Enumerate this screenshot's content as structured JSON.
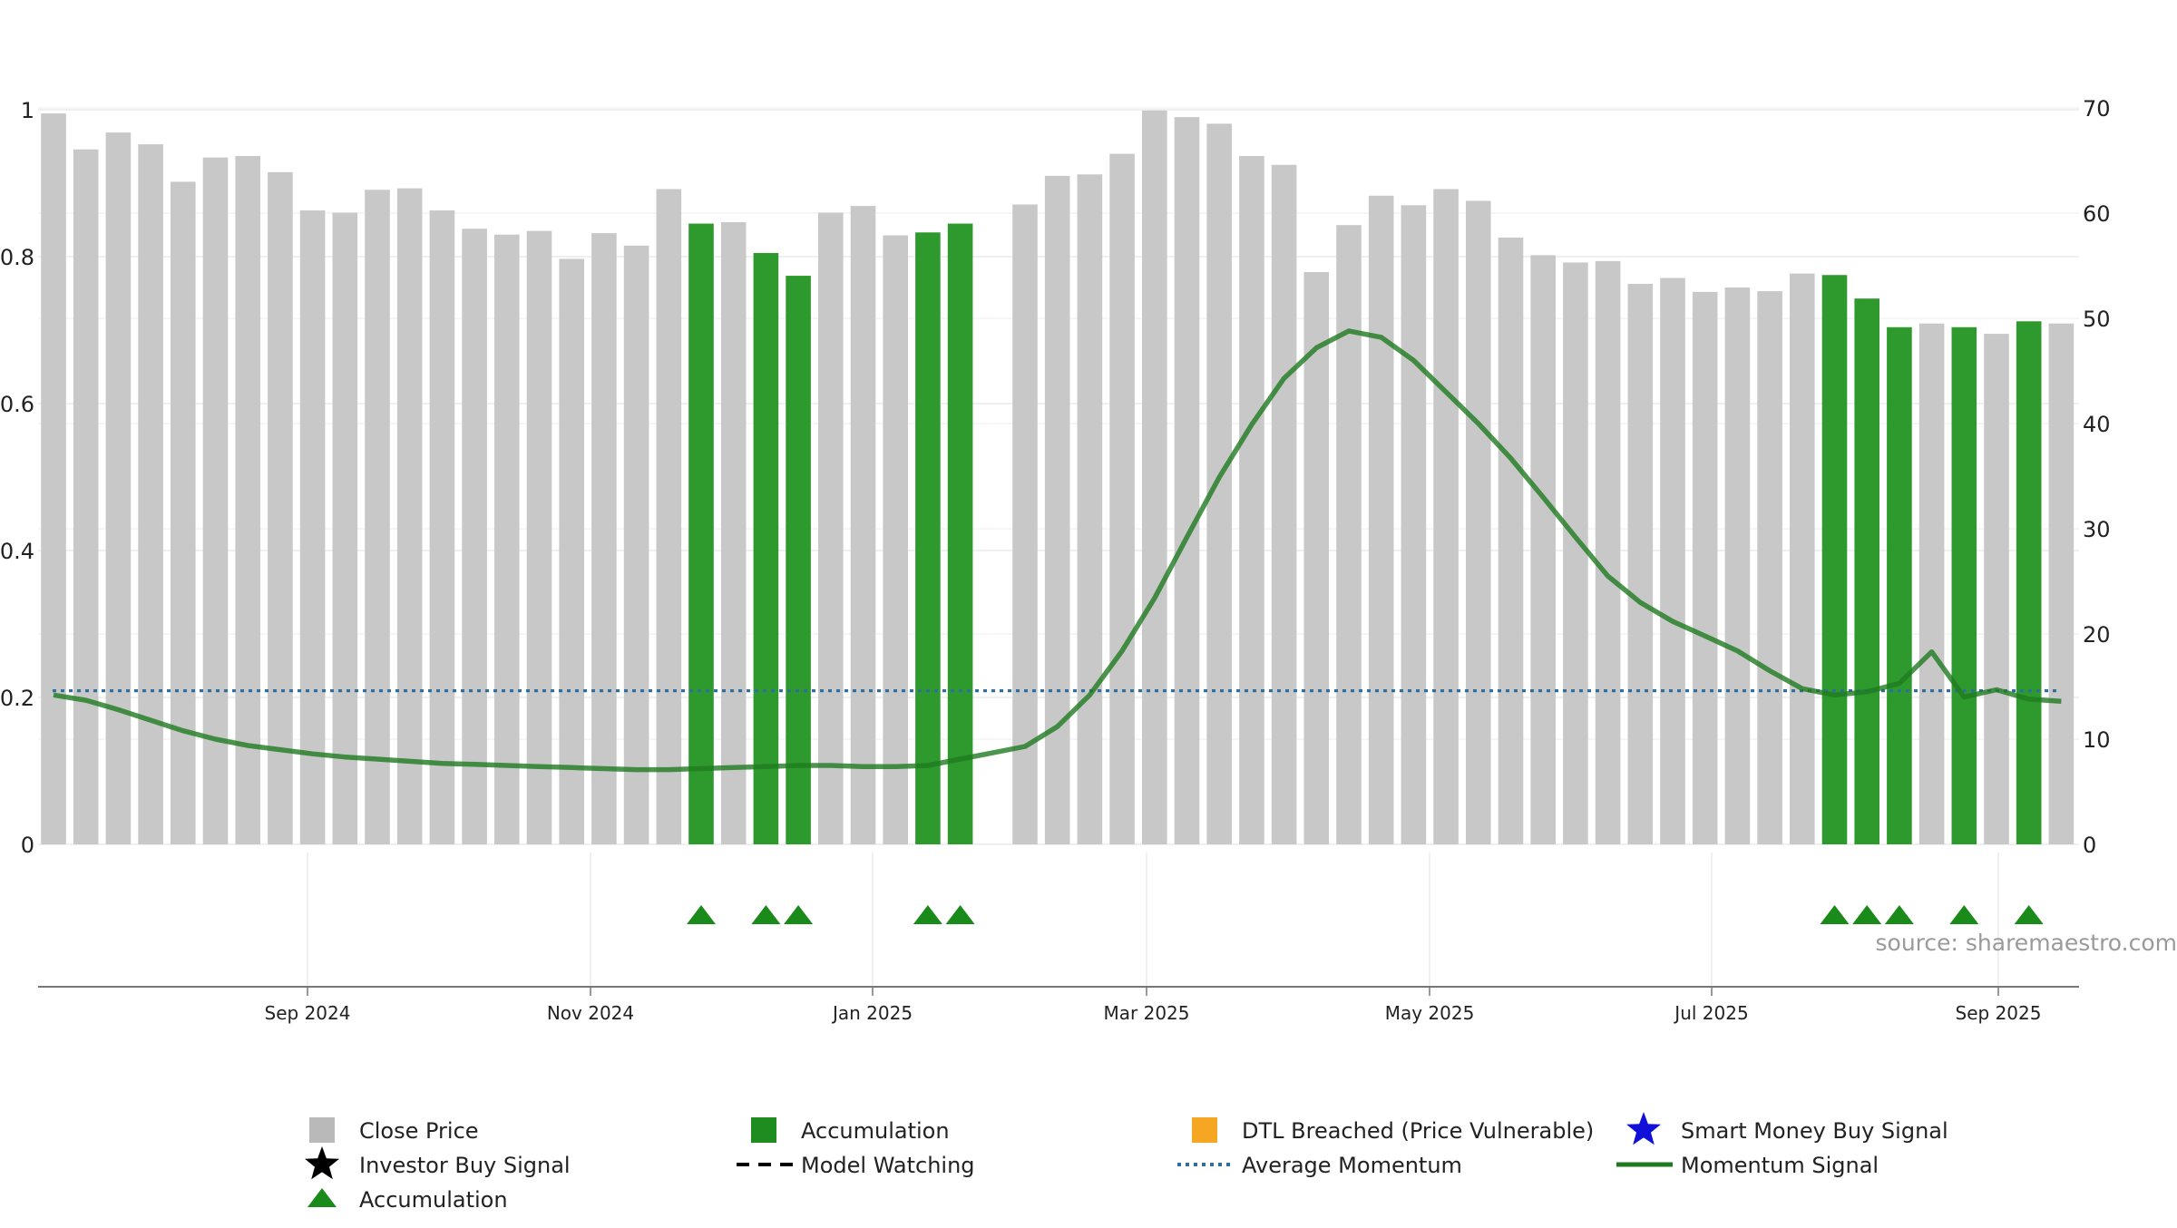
{
  "source": "source: sharemaestro.com",
  "chart_data": {
    "type": "bar",
    "x_tick_labels": [
      "Sep 2024",
      "Nov 2024",
      "Jan 2025",
      "Mar 2025",
      "May 2025",
      "Jul 2025",
      "Sep 2025"
    ],
    "left_axis": {
      "ylim": [
        0,
        1
      ],
      "tick_labels": [
        "0",
        "0.2",
        "0.4",
        "0.6",
        "0.8",
        "1"
      ]
    },
    "right_axis": {
      "ylim": [
        0,
        70
      ],
      "tick_labels": [
        "0",
        "10",
        "20",
        "30",
        "40",
        "50",
        "60",
        "70"
      ]
    },
    "grid": true,
    "legend_position": "bottom",
    "series": [
      {
        "name": "Close Price",
        "color": "#c8c8c8",
        "accumulation_color": "#2e9a2e",
        "values": [
          0.995,
          0.946,
          0.969,
          0.953,
          0.902,
          0.935,
          0.937,
          0.915,
          0.863,
          0.86,
          0.891,
          0.893,
          0.863,
          0.838,
          0.83,
          0.835,
          0.797,
          0.832,
          0.815,
          0.892,
          0.845,
          0.847,
          0.805,
          0.774,
          0.86,
          0.869,
          0.829,
          0.833,
          0.845,
          null,
          0.871,
          0.91,
          0.912,
          0.94,
          0.999,
          0.99,
          0.981,
          0.937,
          0.925,
          0.779,
          0.843,
          0.883,
          0.87,
          0.892,
          0.876,
          0.826,
          0.802,
          0.792,
          0.794,
          0.763,
          0.771,
          0.752,
          0.758,
          0.753,
          0.777,
          0.775,
          0.743,
          0.704,
          0.709,
          0.704,
          0.695,
          0.712,
          0.709
        ],
        "accumulation_flags": [
          0,
          0,
          0,
          0,
          0,
          0,
          0,
          0,
          0,
          0,
          0,
          0,
          0,
          0,
          0,
          0,
          0,
          0,
          0,
          0,
          1,
          0,
          1,
          1,
          0,
          0,
          0,
          1,
          1,
          0,
          0,
          0,
          0,
          0,
          0,
          0,
          0,
          0,
          0,
          0,
          0,
          0,
          0,
          0,
          0,
          0,
          0,
          0,
          0,
          0,
          0,
          0,
          0,
          0,
          0,
          1,
          1,
          1,
          0,
          1,
          0,
          1,
          0
        ]
      },
      {
        "name": "Momentum Signal",
        "color": "#1f7a1f",
        "axis": "right",
        "values": [
          14.2,
          13.7,
          12.8,
          11.8,
          10.8,
          10.0,
          9.4,
          9.0,
          8.6,
          8.3,
          8.1,
          7.9,
          7.7,
          7.6,
          7.5,
          7.4,
          7.3,
          7.2,
          7.1,
          7.1,
          7.2,
          7.3,
          7.4,
          7.5,
          7.5,
          7.4,
          7.4,
          7.5,
          8.1,
          8.7,
          9.3,
          11.2,
          14.2,
          18.4,
          23.4,
          29.2,
          34.9,
          39.9,
          44.3,
          47.2,
          48.8,
          48.2,
          46.0,
          43.0,
          40.0,
          36.7,
          33.0,
          29.2,
          25.5,
          23.0,
          21.2,
          19.8,
          18.4,
          16.5,
          14.8,
          14.2,
          14.5,
          15.3,
          18.3,
          14.0,
          14.7,
          13.8,
          13.6
        ]
      },
      {
        "name": "Average Momentum",
        "color": "#2e6f9e",
        "axis": "right",
        "value": 14.6
      }
    ],
    "legend": [
      {
        "label": "Close Price",
        "marker": "square-gray"
      },
      {
        "label": "Accumulation",
        "marker": "square-green"
      },
      {
        "label": "DTL Breached (Price Vulnerable)",
        "marker": "square-orange"
      },
      {
        "label": "Smart Money Buy Signal",
        "marker": "star-blue"
      },
      {
        "label": "Investor Buy Signal",
        "marker": "star-black"
      },
      {
        "label": "Model Watching",
        "marker": "dash-black"
      },
      {
        "label": "Average Momentum",
        "marker": "dotted-blue"
      },
      {
        "label": "Momentum Signal",
        "marker": "line-green"
      },
      {
        "label": "Accumulation",
        "marker": "triangle-green"
      }
    ],
    "colors": {
      "grid": "#ececec",
      "axis_text": "#222222",
      "close_price": "#c8c8c8",
      "accumulation": "#2e9a2e",
      "accumulation_triangle": "#1a8a1a",
      "dtl_breached": "#f5a623",
      "smart_money": "#1010d8",
      "investor_buy": "#000000",
      "momentum": "#1f7a1f",
      "average_momentum": "#2e6f9e",
      "source_text": "#9a9a9a"
    }
  }
}
